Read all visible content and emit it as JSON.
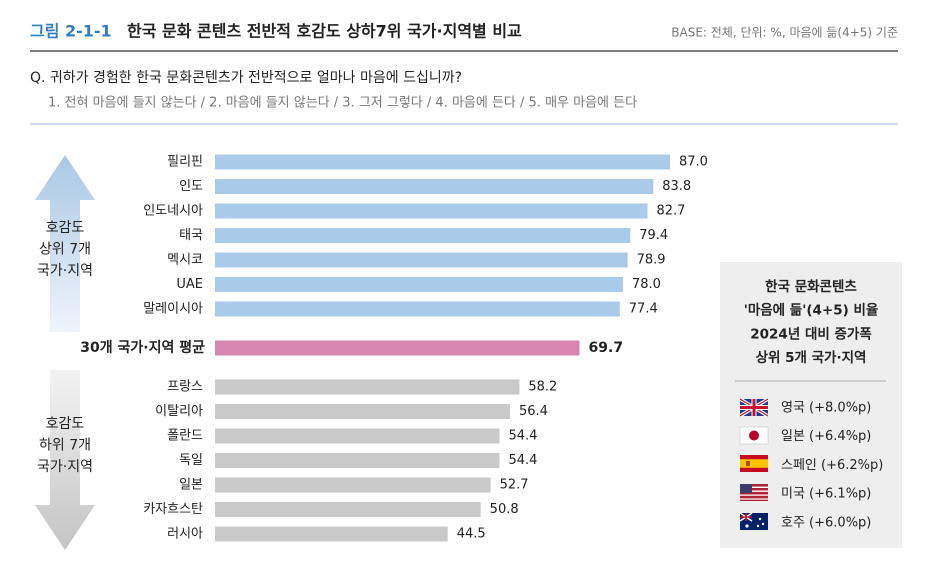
{
  "header": {
    "figure_no": "그림 2-1-1",
    "title": "한국 문화 콘텐츠 전반적 호감도 상하7위 국가·지역별 비교",
    "base": "BASE: 전체, 단위: %, 마음에 듦(4+5) 기준"
  },
  "question": {
    "text": "Q. 귀하가 경험한 한국 문화콘텐츠가 전반적으로 얼마나 마음에 드십니까?",
    "options": "1. 전혀 마음에 들지 않는다 / 2. 마음에 들지 않는다 / 3. 그저 그렇다 / 4. 마음에 든다 / 5. 매우 마음에 든다"
  },
  "side_labels": {
    "top": [
      "호감도",
      "상위 7개",
      "국가·지역"
    ],
    "bottom": [
      "호감도",
      "하위 7개",
      "국가·지역"
    ]
  },
  "panel": {
    "title": [
      "한국 문화콘텐츠",
      "'마음에 듦'(4+5) 비율",
      "2024년 대비 증가폭",
      "상위 5개 국가·지역"
    ],
    "items": [
      "영국 (+8.0%p)",
      "일본 (+6.4%p)",
      "스페인 (+6.2%p)",
      "미국 (+6.1%p)",
      "호주 (+6.0%p)"
    ]
  },
  "chart_data": {
    "type": "bar",
    "categories": [
      "필리핀",
      "인도",
      "인도네시아",
      "태국",
      "멕시코",
      "UAE",
      "말레이시아",
      "30개 국가·지역 평균",
      "프랑스",
      "이탈리아",
      "폴란드",
      "독일",
      "일본",
      "카자흐스탄",
      "러시아"
    ],
    "values": [
      87.0,
      83.8,
      82.7,
      79.4,
      78.9,
      78.0,
      77.4,
      69.7,
      58.2,
      56.4,
      54.4,
      54.4,
      52.7,
      50.8,
      44.5
    ],
    "value_labels": [
      "87.0",
      "83.8",
      "82.7",
      "79.4",
      "78.9",
      "78.0",
      "77.4",
      "69.7",
      "58.2",
      "56.4",
      "54.4",
      "54.4",
      "52.7",
      "50.8",
      "44.5"
    ],
    "colors": [
      "#a9cbe9",
      "#a9cbe9",
      "#a9cbe9",
      "#a9cbe9",
      "#a9cbe9",
      "#a9cbe9",
      "#a9cbe9",
      "#d986b0",
      "#c9c9c9",
      "#c9c9c9",
      "#c9c9c9",
      "#c9c9c9",
      "#c9c9c9",
      "#c9c9c9",
      "#c9c9c9"
    ]
  }
}
